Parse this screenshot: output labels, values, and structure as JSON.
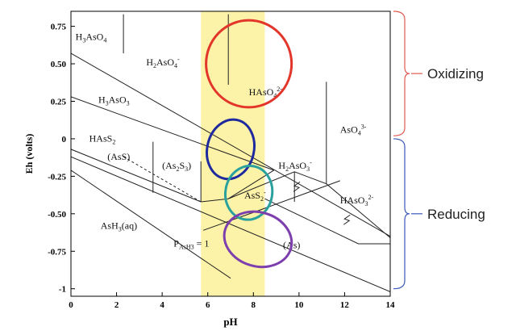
{
  "chart_data": {
    "type": "phase-diagram",
    "xlabel": "pH",
    "ylabel": "Eh (volts)",
    "xlim": [
      0,
      14
    ],
    "ylim": [
      -1.05,
      0.85
    ],
    "x_ticks": [
      "0",
      "2",
      "4",
      "6",
      "8",
      "10",
      "12",
      "14"
    ],
    "y_ticks": [
      "0.75",
      "0.50",
      "0.25",
      "0",
      "-0.25",
      "-0.50",
      "-0.75",
      "-1"
    ],
    "x_tick_values": [
      0,
      2,
      4,
      6,
      8,
      10,
      12,
      14
    ],
    "y_tick_values": [
      0.75,
      0.5,
      0.25,
      0,
      -0.25,
      -0.5,
      -0.75,
      -1
    ],
    "highlight_band": {
      "x": [
        5.7,
        8.5
      ],
      "color": "#fcf3a8"
    },
    "water_lines": [
      {
        "points": [
          [
            0,
            0.57
          ],
          [
            14,
            -0.65
          ]
        ]
      },
      {
        "points": [
          [
            0,
            -0.12
          ],
          [
            14,
            -1.02
          ]
        ]
      },
      {
        "points": [
          [
            0,
            -0.21
          ],
          [
            7,
            -0.93
          ]
        ]
      }
    ],
    "boundaries": [
      {
        "points": [
          [
            2.3,
            0.83
          ],
          [
            2.3,
            0.57
          ]
        ]
      },
      {
        "points": [
          [
            6.9,
            0.83
          ],
          [
            6.9,
            0.36
          ]
        ]
      },
      {
        "points": [
          [
            11.2,
            0.38
          ],
          [
            11.2,
            -0.3
          ]
        ]
      },
      {
        "points": [
          [
            0,
            0.28
          ],
          [
            8.9,
            -0.21
          ]
        ]
      },
      {
        "points": [
          [
            0,
            -0.07
          ],
          [
            5.7,
            -0.42
          ]
        ]
      },
      {
        "points": [
          [
            5.7,
            -0.42
          ],
          [
            6.9,
            -0.4
          ],
          [
            9.8,
            -0.22
          ],
          [
            11.2,
            -0.3
          ],
          [
            14,
            -0.66
          ]
        ]
      },
      {
        "points": [
          [
            3.6,
            -0.02
          ],
          [
            3.6,
            -0.36
          ]
        ]
      },
      {
        "points": [
          [
            5.7,
            -0.15
          ],
          [
            5.7,
            -0.42
          ]
        ]
      },
      {
        "points": [
          [
            6.9,
            -0.4
          ],
          [
            8.9,
            -0.21
          ]
        ]
      },
      {
        "points": [
          [
            9.8,
            -0.22
          ],
          [
            9.8,
            -0.42
          ]
        ]
      },
      {
        "points": [
          [
            5.8,
            -0.61
          ],
          [
            8.2,
            -0.48
          ],
          [
            11.8,
            -0.28
          ]
        ]
      },
      {
        "points": [
          [
            8.5,
            -0.4
          ],
          [
            12.6,
            -0.7
          ],
          [
            14,
            -0.7
          ]
        ]
      }
    ],
    "dashed_boundaries": [
      {
        "points": [
          [
            2.3,
            -0.12
          ],
          [
            5.7,
            -0.42
          ]
        ]
      }
    ],
    "species_labels": [
      {
        "parts": [
          [
            "H",
            "n"
          ],
          [
            "3",
            "sub"
          ],
          [
            "AsO",
            "n"
          ],
          [
            "4",
            "sub"
          ]
        ],
        "x": 0.2,
        "y": 0.66
      },
      {
        "parts": [
          [
            "H",
            "n"
          ],
          [
            "2",
            "sub"
          ],
          [
            "AsO",
            "n"
          ],
          [
            "4",
            "sub"
          ],
          [
            "-",
            "sup"
          ]
        ],
        "x": 3.3,
        "y": 0.49
      },
      {
        "parts": [
          [
            "HAsO",
            "n"
          ],
          [
            "4",
            "sub"
          ],
          [
            "2-",
            "sup"
          ]
        ],
        "x": 7.8,
        "y": 0.29
      },
      {
        "parts": [
          [
            "H",
            "n"
          ],
          [
            "3",
            "sub"
          ],
          [
            "AsO",
            "n"
          ],
          [
            "3",
            "sub"
          ]
        ],
        "x": 1.2,
        "y": 0.24
      },
      {
        "parts": [
          [
            "AsO",
            "n"
          ],
          [
            "4",
            "sub"
          ],
          [
            "3-",
            "sup"
          ]
        ],
        "x": 11.8,
        "y": 0.04
      },
      {
        "parts": [
          [
            "HAsS",
            "n"
          ],
          [
            "2",
            "sub"
          ]
        ],
        "x": 0.8,
        "y": -0.02
      },
      {
        "parts": [
          [
            "(AsS)",
            "n"
          ]
        ],
        "x": 1.6,
        "y": -0.14
      },
      {
        "parts": [
          [
            "(As",
            "n"
          ],
          [
            "2",
            "sub"
          ],
          [
            "S",
            "n"
          ],
          [
            "3",
            "sub"
          ],
          [
            ")",
            "n"
          ]
        ],
        "x": 4.0,
        "y": -0.2
      },
      {
        "parts": [
          [
            "H",
            "n"
          ],
          [
            "2",
            "sub"
          ],
          [
            "AsO",
            "n"
          ],
          [
            "3",
            "sub"
          ],
          [
            "-",
            "sup"
          ]
        ],
        "x": 9.1,
        "y": -0.2
      },
      {
        "parts": [
          [
            "AsS",
            "n"
          ],
          [
            "2",
            "sub"
          ],
          [
            "-",
            "sup"
          ]
        ],
        "x": 7.6,
        "y": -0.4
      },
      {
        "parts": [
          [
            "HAsO",
            "n"
          ],
          [
            "3",
            "sub"
          ],
          [
            "2-",
            "sup"
          ]
        ],
        "x": 11.8,
        "y": -0.43
      },
      {
        "parts": [
          [
            "AsH",
            "n"
          ],
          [
            "3",
            "sub"
          ],
          [
            "(aq)",
            "n"
          ]
        ],
        "x": 1.3,
        "y": -0.6
      },
      {
        "parts": [
          [
            "P",
            "n"
          ],
          [
            "AsH3",
            "sub"
          ],
          [
            " = 1",
            "n"
          ]
        ],
        "x": 4.5,
        "y": -0.72
      },
      {
        "parts": [
          [
            "(As)",
            "n"
          ]
        ],
        "x": 9.3,
        "y": -0.73
      }
    ],
    "ellipses": [
      {
        "cx": 7.8,
        "cy": 0.5,
        "rx": 3.75,
        "ry": 0.29,
        "angle": 0,
        "color": "#e3362b"
      },
      {
        "cx": 7.0,
        "cy": -0.07,
        "rx": 2.05,
        "ry": 0.2,
        "angle": 13,
        "color": "#1f2a9e"
      },
      {
        "cx": 7.8,
        "cy": -0.36,
        "rx": 2.05,
        "ry": 0.18,
        "angle": 10,
        "color": "#2aa19d"
      },
      {
        "cx": 8.2,
        "cy": -0.67,
        "rx": 3.0,
        "ry": 0.18,
        "angle": 16,
        "color": "#7d3fae"
      }
    ],
    "annotations": [
      {
        "text": "Oxidizing",
        "range": [
          0.02,
          0.85
        ],
        "color": "#e05b52"
      },
      {
        "text": "Reducing",
        "range": [
          -1.0,
          0.0
        ],
        "color": "#3a58b8"
      }
    ]
  }
}
